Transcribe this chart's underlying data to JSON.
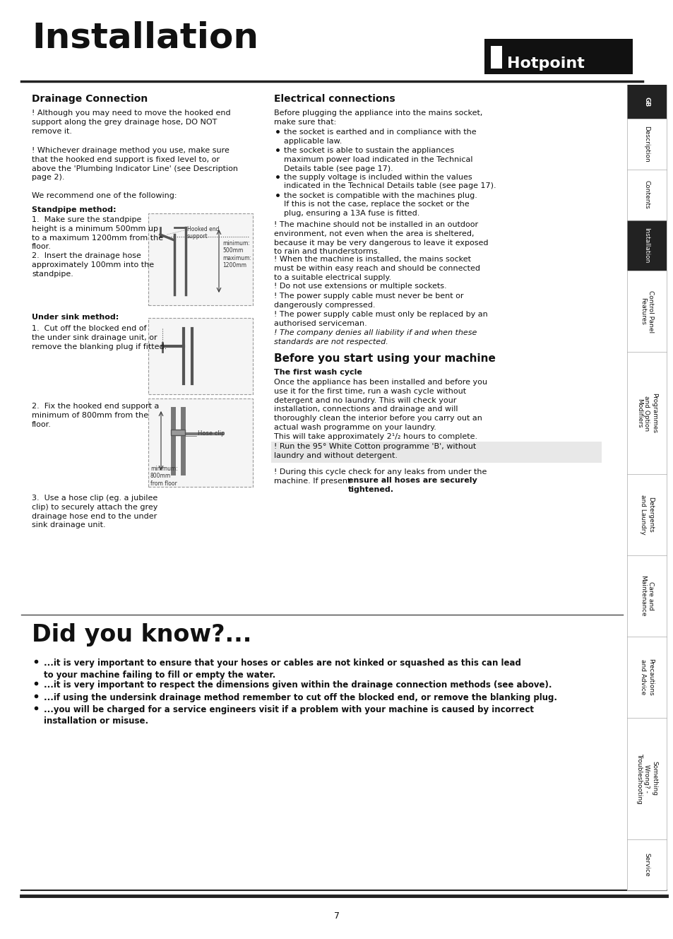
{
  "title": "Installation",
  "hotpoint_logo_text": "■ Hotpoint",
  "bg_color": "#ffffff",
  "sidebar_items": [
    {
      "text": "GB",
      "highlight": true,
      "dark": true
    },
    {
      "text": "Description",
      "highlight": false,
      "dark": false
    },
    {
      "text": "Contents",
      "highlight": false,
      "dark": false
    },
    {
      "text": "Installation",
      "highlight": true,
      "dark": true
    },
    {
      "text": "Control Panel\nFeatures",
      "highlight": false,
      "dark": false
    },
    {
      "text": "Programmes\nand Option\nModifiers",
      "highlight": false,
      "dark": false
    },
    {
      "text": "Detergents\nand Laundry",
      "highlight": false,
      "dark": false
    },
    {
      "text": "Care and\nMaintenance",
      "highlight": false,
      "dark": false
    },
    {
      "text": "Precautions\nand Advice",
      "highlight": false,
      "dark": false
    },
    {
      "text": "Something\nWrong? -\nTroubleshooting",
      "highlight": false,
      "dark": false
    },
    {
      "text": "Service",
      "highlight": false,
      "dark": false
    }
  ],
  "page_number": "7"
}
